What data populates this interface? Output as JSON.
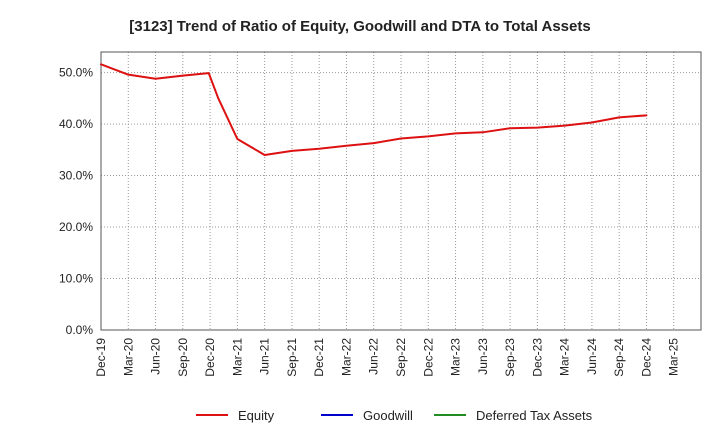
{
  "chart_data": {
    "type": "line",
    "title": "[3123]  Trend of Ratio of Equity, Goodwill and DTA to Total Assets",
    "xlabel": "",
    "ylabel": "",
    "ylim": [
      0,
      54
    ],
    "y_ticks": [
      0,
      10,
      20,
      30,
      40,
      50
    ],
    "y_tick_labels": [
      "0.0%",
      "10.0%",
      "20.0%",
      "30.0%",
      "40.0%",
      "50.0%"
    ],
    "x_tick_labels": [
      "Dec-19",
      "Mar-20",
      "Jun-20",
      "Sep-20",
      "Dec-20",
      "Mar-21",
      "Jun-21",
      "Sep-21",
      "Dec-21",
      "Mar-22",
      "Jun-22",
      "Sep-22",
      "Dec-22",
      "Mar-23",
      "Jun-23",
      "Sep-23",
      "Dec-23",
      "Mar-24",
      "Jun-24",
      "Sep-24",
      "Dec-24",
      "Mar-25"
    ],
    "grid": true,
    "series": [
      {
        "name": "Equity",
        "color": "#dd1111",
        "points": [
          {
            "x": 0,
            "y": 51.6
          },
          {
            "x": 1,
            "y": 49.6
          },
          {
            "x": 2,
            "y": 48.8
          },
          {
            "x": 3,
            "y": 49.4
          },
          {
            "x": 3.95,
            "y": 49.9
          },
          {
            "x": 4.3,
            "y": 45.0
          },
          {
            "x": 5,
            "y": 37.1
          },
          {
            "x": 6,
            "y": 34.0
          },
          {
            "x": 7,
            "y": 34.8
          },
          {
            "x": 8,
            "y": 35.2
          },
          {
            "x": 9,
            "y": 35.8
          },
          {
            "x": 10,
            "y": 36.3
          },
          {
            "x": 11,
            "y": 37.2
          },
          {
            "x": 12,
            "y": 37.6
          },
          {
            "x": 13,
            "y": 38.2
          },
          {
            "x": 14,
            "y": 38.4
          },
          {
            "x": 15,
            "y": 39.2
          },
          {
            "x": 16,
            "y": 39.3
          },
          {
            "x": 17,
            "y": 39.7
          },
          {
            "x": 18,
            "y": 40.3
          },
          {
            "x": 19,
            "y": 41.3
          },
          {
            "x": 20,
            "y": 41.7
          }
        ]
      },
      {
        "name": "Goodwill",
        "color": "#0000cc",
        "points": []
      },
      {
        "name": "Deferred Tax Assets",
        "color": "#228b22",
        "points": []
      }
    ],
    "legend": {
      "position": "bottom",
      "entries": [
        {
          "label": "Equity",
          "color": "#dd1111"
        },
        {
          "label": "Goodwill",
          "color": "#0000cc"
        },
        {
          "label": "Deferred Tax Assets",
          "color": "#228b22"
        }
      ]
    }
  }
}
